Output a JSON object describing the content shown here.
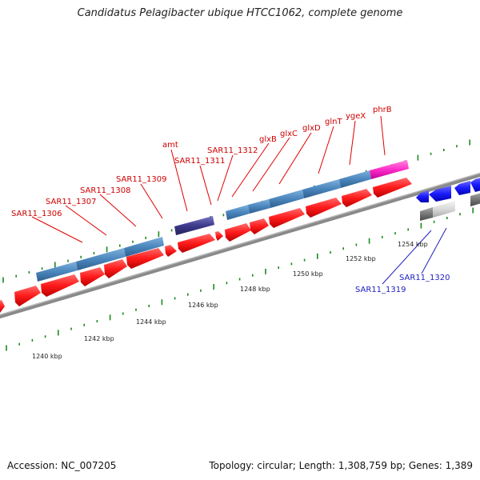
{
  "title": "Candidatus Pelagibacter ubique HTCC1062, complete genome",
  "footer": {
    "accession": "Accession: NC_007205",
    "summary": "Topology: circular; Length: 1,308,759 bp; Genes: 1,389"
  },
  "scale_labels": [
    "1240 kbp",
    "1242 kbp",
    "1244 kbp",
    "1246 kbp",
    "1248 kbp",
    "1250 kbp",
    "1252 kbp",
    "1254 kbp"
  ],
  "gene_labels_red": [
    "SAR11_1306",
    "SAR11_1307",
    "SAR11_1308",
    "SAR11_1309",
    "amt",
    "SAR11_1311",
    "SAR11_1312",
    "glxB",
    "glxC",
    "glxD",
    "glnT",
    "ygeX",
    "phrB"
  ],
  "gene_labels_blue": [
    "SAR11_1319",
    "SAR11_1320"
  ],
  "colors": {
    "cds_red": "#ff1a1a",
    "gene_steelblue": "#4a86bd",
    "gene_purple": "#3d3a8c",
    "gene_magenta": "#ff2cc8",
    "cds_blue": "#1c1cff",
    "gene_gray": "#777777",
    "gene_lightgray": "#d9d9d9",
    "backbone": "#8a8a8a",
    "tick_green": "#1a8a1a",
    "label_red": "#cc0000",
    "label_blue": "#2020c0"
  }
}
